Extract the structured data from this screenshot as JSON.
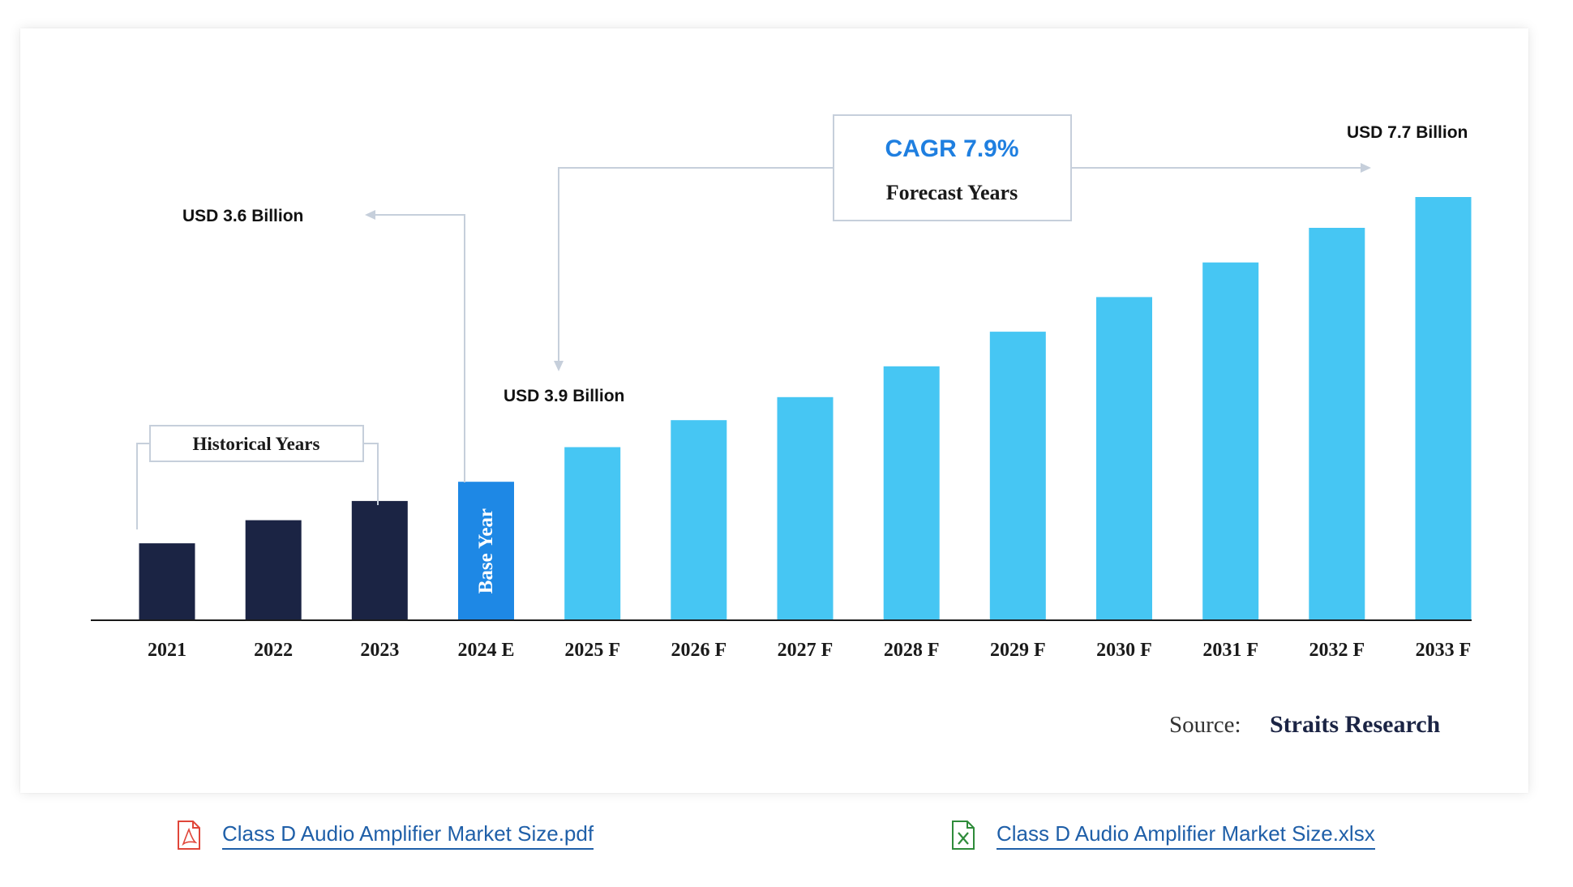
{
  "chart_data": {
    "type": "bar",
    "categories": [
      "2021",
      "2022",
      "2023",
      "2024 E",
      "2025 F",
      "2026 F",
      "2027 F",
      "2028 F",
      "2029 F",
      "2030 F",
      "2031 F",
      "2032 F",
      "2033 F"
    ],
    "values": [
      1.0,
      1.3,
      1.55,
      1.8,
      2.25,
      2.6,
      2.9,
      3.3,
      3.75,
      4.2,
      4.65,
      5.1,
      5.5
    ],
    "bar_colors": [
      "#1b2444",
      "#1b2444",
      "#1b2444",
      "#1e88e5",
      "#46c6f3",
      "#46c6f3",
      "#46c6f3",
      "#46c6f3",
      "#46c6f3",
      "#46c6f3",
      "#46c6f3",
      "#46c6f3",
      "#46c6f3"
    ],
    "ylim": [
      0,
      5.5
    ],
    "base_year_label": "Base Year",
    "annotations": {
      "usd_2024": "USD 3.6 Billion",
      "usd_2025": "USD 3.9 Billion",
      "usd_2033": "USD 7.7 Billion",
      "historical": "Historical Years",
      "cagr": "CAGR 7.9%",
      "forecast": "Forecast Years"
    },
    "source_label": "Source:",
    "source_name": "Straits Research",
    "grid": false,
    "legend": "none"
  },
  "attachments": {
    "pdf_label": "Class D Audio Amplifier Market Size.pdf",
    "xlsx_label": "Class D Audio Amplifier Market Size.xlsx"
  },
  "colors": {
    "historical_bar": "#1b2444",
    "base_year_bar": "#1e88e5",
    "forecast_bar": "#46c6f3",
    "cagr_text": "#1f7fe0",
    "link": "#1f5fa8",
    "pdf_icon": "#e0463a",
    "xlsx_icon": "#2e8b3a"
  }
}
